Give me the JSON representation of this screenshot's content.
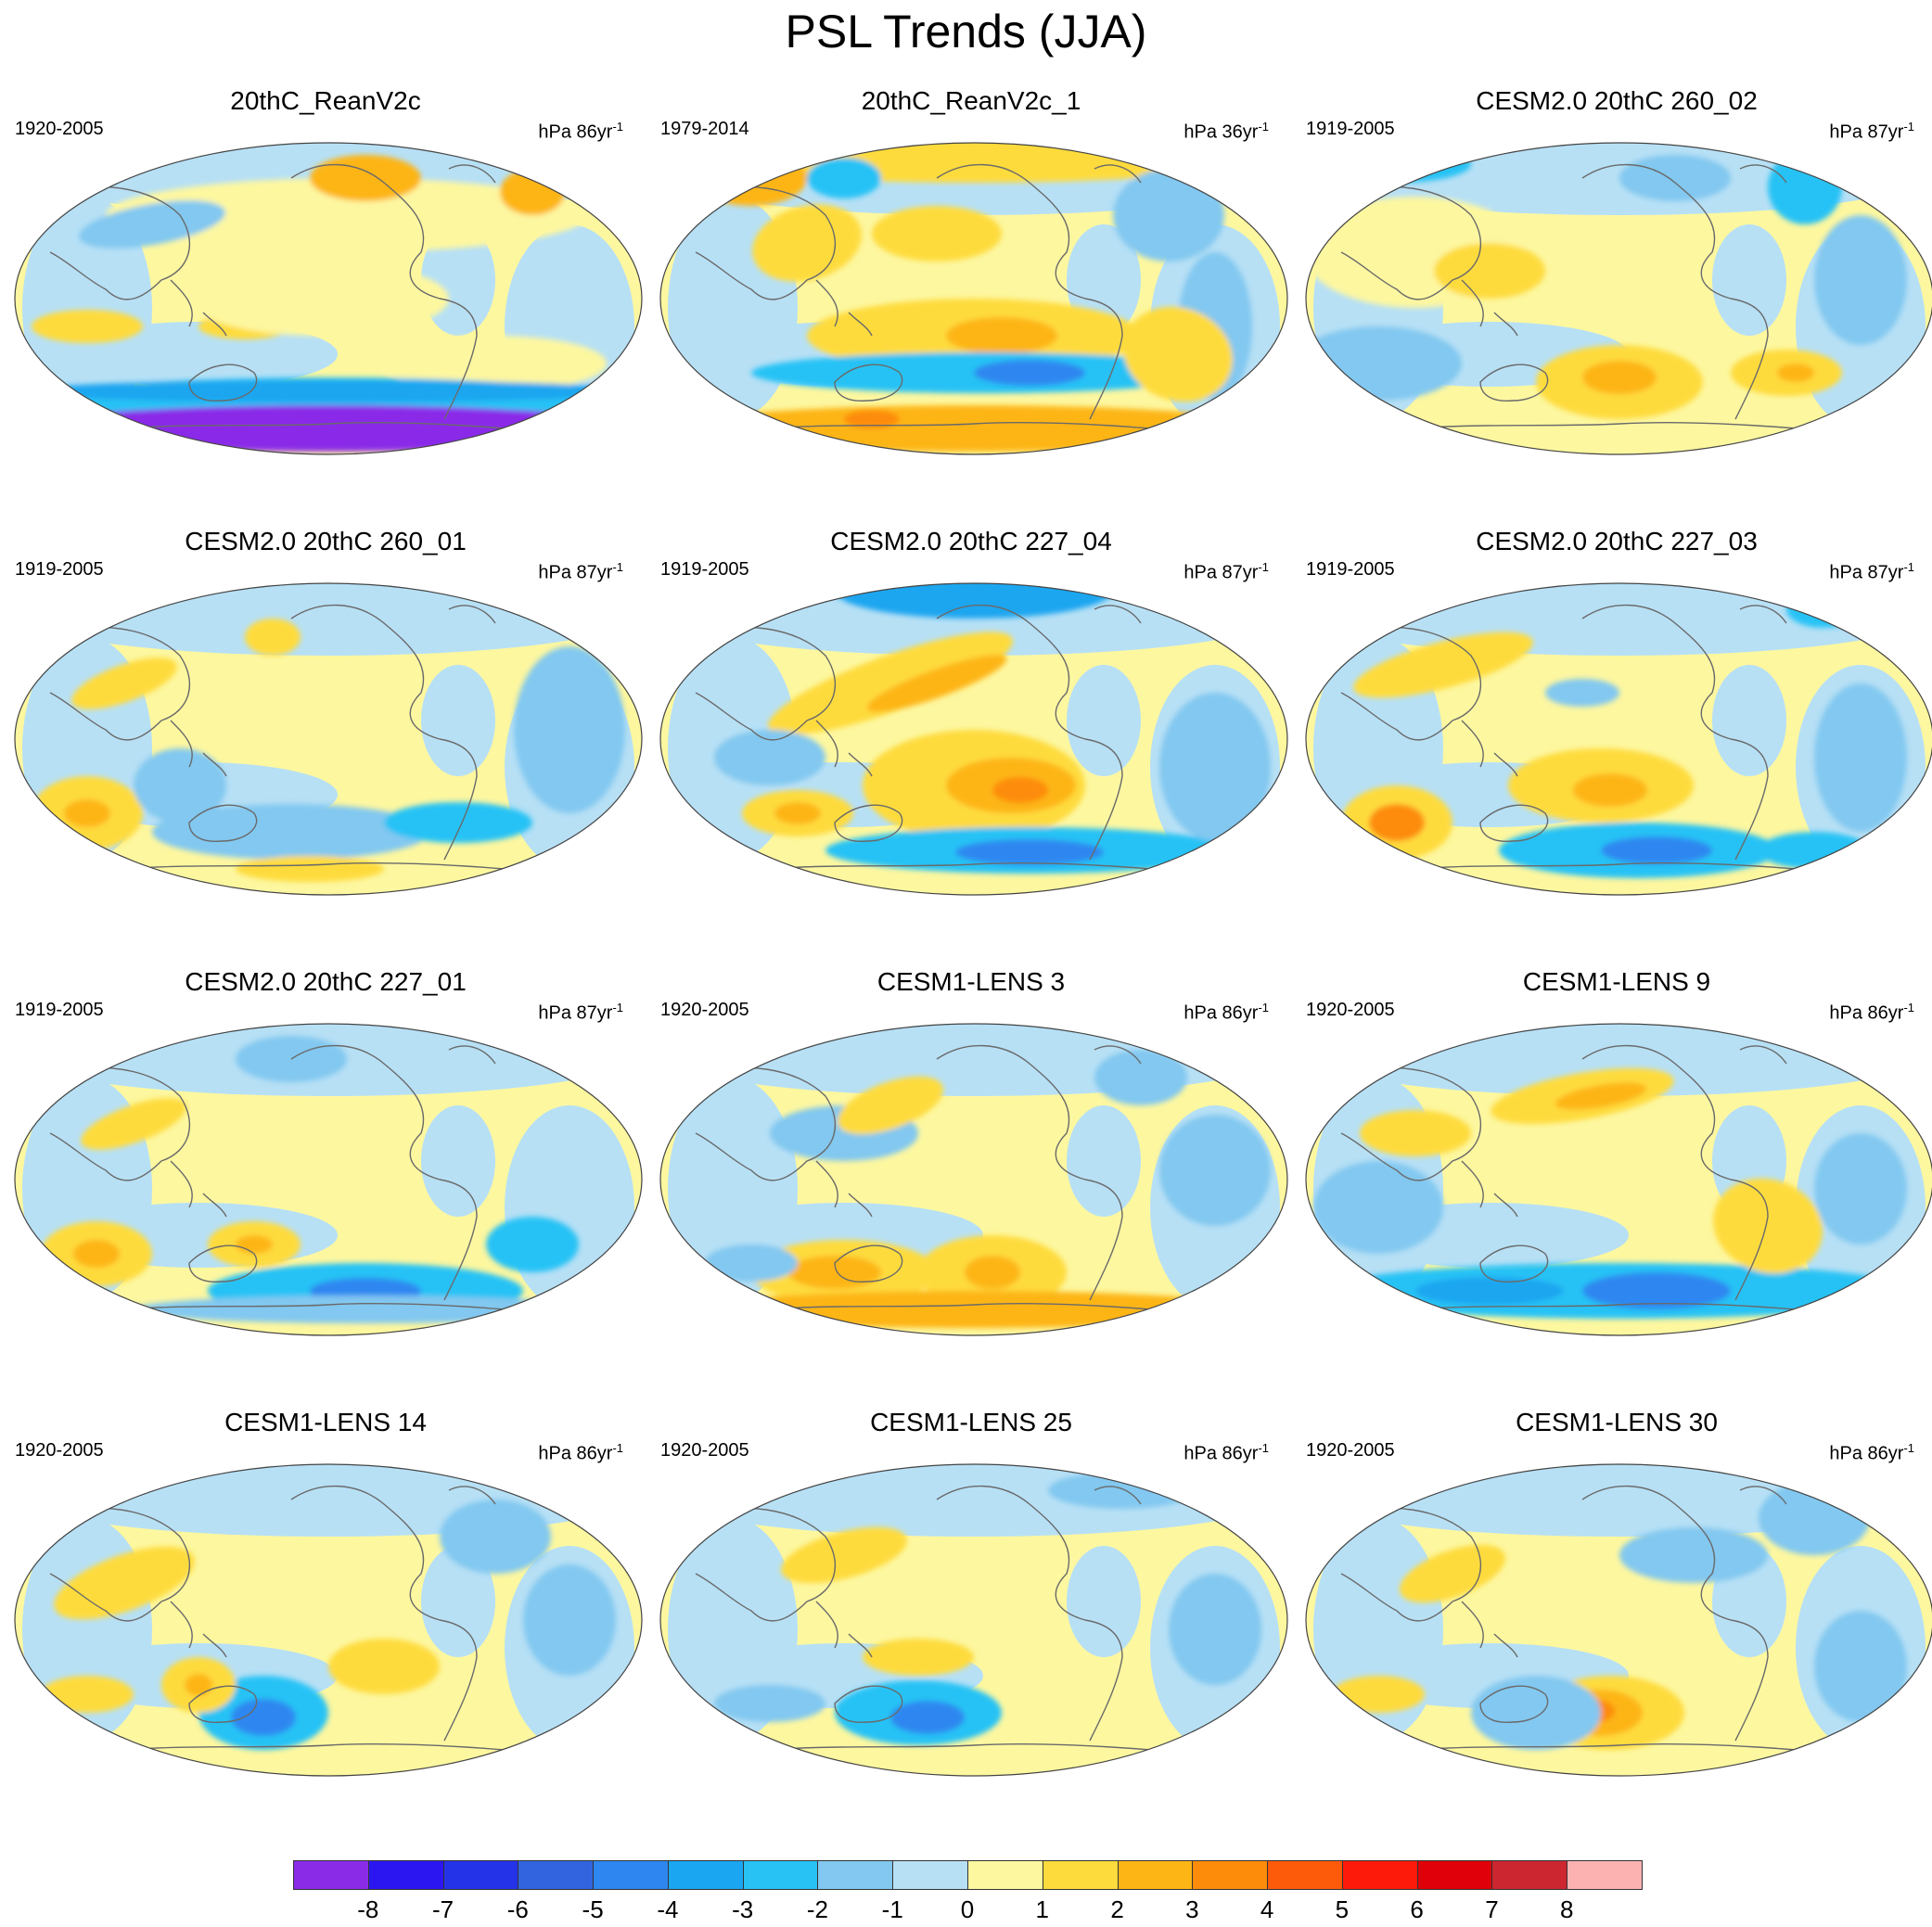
{
  "title": "PSL Trends (JJA)",
  "panels": [
    {
      "title": "20thC_ReanV2c",
      "period": "1920-2005",
      "units": "hPa 86yr",
      "units_exp": "-1"
    },
    {
      "title": "20thC_ReanV2c_1",
      "period": "1979-2014",
      "units": "hPa 36yr",
      "units_exp": "-1"
    },
    {
      "title": "CESM2.0 20thC 260_02",
      "period": "1919-2005",
      "units": "hPa 87yr",
      "units_exp": "-1"
    },
    {
      "title": "CESM2.0 20thC 260_01",
      "period": "1919-2005",
      "units": "hPa 87yr",
      "units_exp": "-1"
    },
    {
      "title": "CESM2.0 20thC 227_04",
      "period": "1919-2005",
      "units": "hPa 87yr",
      "units_exp": "-1"
    },
    {
      "title": "CESM2.0 20thC 227_03",
      "period": "1919-2005",
      "units": "hPa 87yr",
      "units_exp": "-1"
    },
    {
      "title": "CESM2.0 20thC 227_01",
      "period": "1919-2005",
      "units": "hPa 87yr",
      "units_exp": "-1"
    },
    {
      "title": "CESM1-LENS 3",
      "period": "1920-2005",
      "units": "hPa 86yr",
      "units_exp": "-1"
    },
    {
      "title": "CESM1-LENS 9",
      "period": "1920-2005",
      "units": "hPa 86yr",
      "units_exp": "-1"
    },
    {
      "title": "CESM1-LENS 14",
      "period": "1920-2005",
      "units": "hPa 86yr",
      "units_exp": "-1"
    },
    {
      "title": "CESM1-LENS 25",
      "period": "1920-2005",
      "units": "hPa 86yr",
      "units_exp": "-1"
    },
    {
      "title": "CESM1-LENS 30",
      "period": "1920-2005",
      "units": "hPa 86yr",
      "units_exp": "-1"
    }
  ],
  "colorbar": {
    "labels": [
      "-8",
      "-7",
      "-6",
      "-5",
      "-4",
      "-3",
      "-2",
      "-1",
      "0",
      "1",
      "2",
      "3",
      "4",
      "5",
      "6",
      "7",
      "8"
    ],
    "colors": [
      "#8a2be8",
      "#2b16f2",
      "#2433e8",
      "#3264e0",
      "#2e87f0",
      "#1aa6f0",
      "#28c2f5",
      "#82c8f0",
      "#b7e0f5",
      "#fdf7a0",
      "#fedb3c",
      "#fdb515",
      "#fd8c0a",
      "#fd5a0a",
      "#fd1a0a",
      "#e0000a",
      "#cc2630",
      "#fdb2b2"
    ]
  },
  "map_colors": {
    "coast": "#6a6a6a",
    "outline": "#444444"
  }
}
